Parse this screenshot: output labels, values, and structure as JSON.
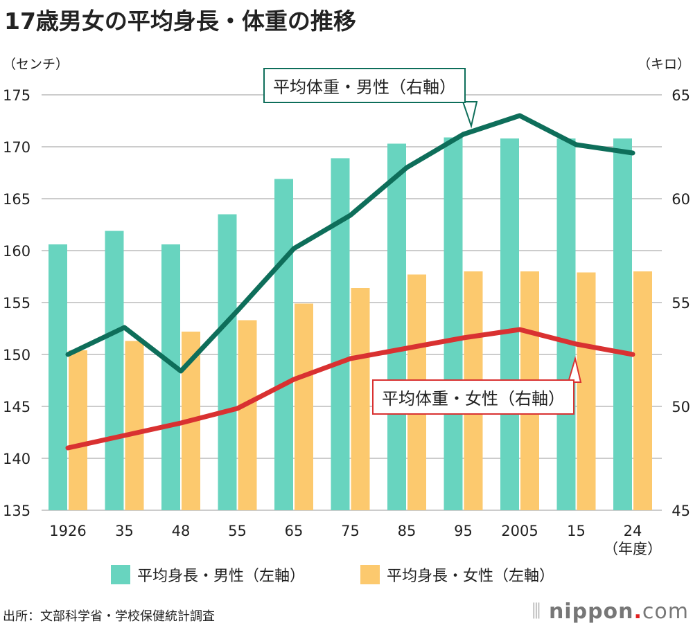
{
  "title": "17歳男女の平均身長・体重の推移",
  "left_unit": "（センチ）",
  "right_unit": "（キロ）",
  "source": "出所：文部科学省・学校保健統計調査",
  "logo": {
    "name": "nippon",
    "dot": ".",
    "suffix": "com"
  },
  "colors": {
    "male_height": "#68d4bf",
    "female_height": "#fcc96e",
    "male_weight": "#0e6e5a",
    "female_weight": "#d93131",
    "grid": "#cccccc"
  },
  "chart_data": {
    "type": "bar+line",
    "title": "17歳男女の平均身長・体重の推移",
    "categories": [
      "1926",
      "35",
      "48",
      "55",
      "65",
      "75",
      "85",
      "95",
      "2005",
      "15",
      "24"
    ],
    "xlabel": "（年度）",
    "ylabel_left": "（センチ）",
    "ylabel_right": "（キロ）",
    "ylim_left": [
      135,
      175
    ],
    "ylim_right": [
      45,
      65
    ],
    "yticks_left": [
      135,
      140,
      145,
      150,
      155,
      160,
      165,
      170,
      175
    ],
    "yticks_right": [
      45,
      50,
      55,
      60,
      65
    ],
    "grid": true,
    "legend_placement": "bottom",
    "series": [
      {
        "name": "平均身長・男性（左軸）",
        "type": "bar",
        "axis": "left",
        "values": [
          160.6,
          161.9,
          160.6,
          163.5,
          166.9,
          168.9,
          170.3,
          170.9,
          170.8,
          170.8,
          170.8
        ]
      },
      {
        "name": "平均身長・女性（左軸）",
        "type": "bar",
        "axis": "left",
        "values": [
          150.4,
          151.3,
          152.2,
          153.3,
          154.9,
          156.4,
          157.7,
          158.0,
          158.0,
          157.9,
          158.0
        ]
      },
      {
        "name": "平均体重・男性（右軸）",
        "type": "line",
        "axis": "right",
        "values": [
          52.5,
          53.8,
          51.7,
          54.6,
          57.6,
          59.2,
          61.5,
          63.1,
          64.0,
          62.6,
          62.2
        ]
      },
      {
        "name": "平均体重・女性（右軸）",
        "type": "line",
        "axis": "right",
        "values": [
          48.0,
          48.6,
          49.2,
          49.9,
          51.3,
          52.3,
          52.8,
          53.3,
          53.7,
          53.0,
          52.5
        ]
      }
    ]
  }
}
